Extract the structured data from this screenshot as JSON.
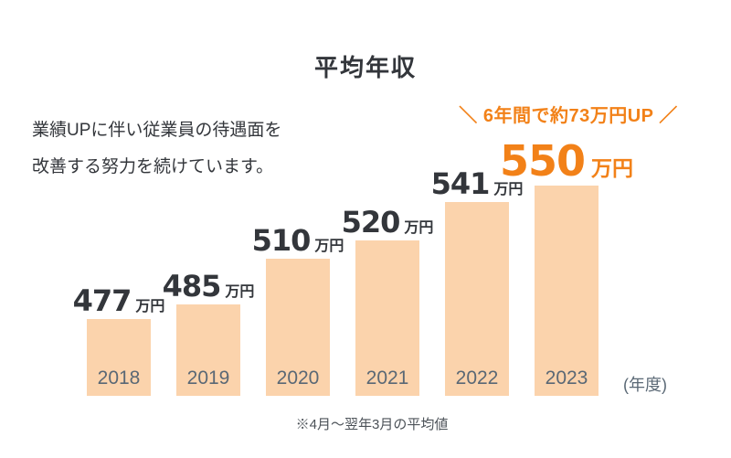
{
  "page": {
    "title": "平均年収",
    "intro_line1": "業績UPに伴い従業員の待遇面を",
    "intro_line2": "改善する努力を続けています。",
    "footnote": "※4月～翌年3月の平均値"
  },
  "colors": {
    "accent_orange": "#F28118",
    "bar_fill": "#FBD3AC",
    "heading_text": "#33363B",
    "value_text": "#33363B",
    "year_text": "#5A6875",
    "muted_text": "#4C5258"
  },
  "chart_data": {
    "type": "bar",
    "title": "平均年収",
    "categories": [
      "2018",
      "2019",
      "2020",
      "2021",
      "2022",
      "2023"
    ],
    "values": [
      477,
      485,
      510,
      520,
      541,
      550
    ],
    "unit": "万円",
    "xlabel": "(年度)",
    "ylim": [
      435,
      555
    ],
    "grid": false,
    "legend": false,
    "highlight_index": 5,
    "annotation": "＼ 6年間で約73万円UP ／"
  }
}
